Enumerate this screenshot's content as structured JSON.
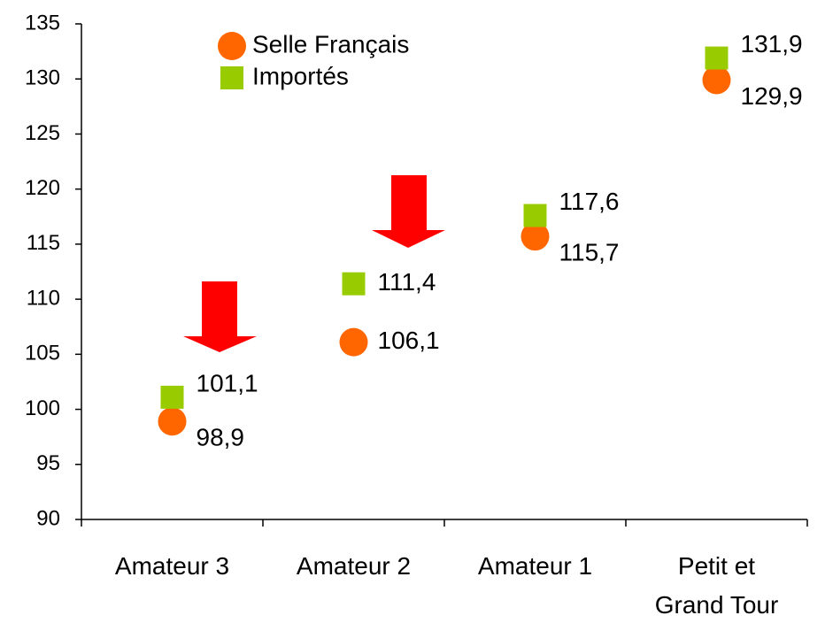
{
  "chart_data": {
    "type": "scatter",
    "categories": [
      "Amateur 3",
      "Amateur 2",
      "Amateur 1",
      "Petit et Grand Tour"
    ],
    "series": [
      {
        "name": "Selle Français",
        "color": "#ff6600",
        "marker": "circle",
        "values": [
          98.9,
          106.1,
          115.7,
          129.9
        ],
        "value_labels": [
          "98,9",
          "106,1",
          "115,7",
          "129,9"
        ]
      },
      {
        "name": "Importés",
        "color": "#99cc00",
        "marker": "square",
        "values": [
          101.1,
          111.4,
          117.6,
          131.9
        ],
        "value_labels": [
          "101,1",
          "111,4",
          "117,6",
          "131,9"
        ]
      }
    ],
    "ylim": [
      90,
      135
    ],
    "yticks": [
      90,
      95,
      100,
      105,
      110,
      115,
      120,
      125,
      130,
      135
    ],
    "grid": false
  }
}
